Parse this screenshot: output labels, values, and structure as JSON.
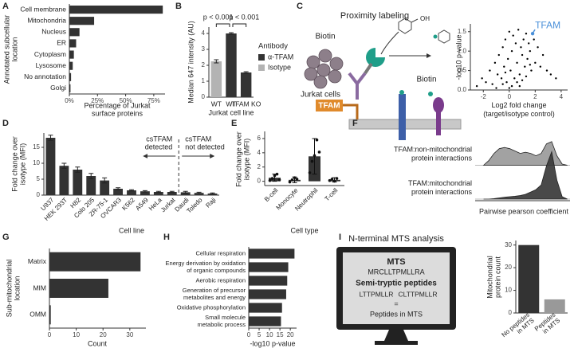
{
  "panel_labels": [
    "A",
    "B",
    "C",
    "D",
    "E",
    "F",
    "G",
    "H",
    "I"
  ],
  "diagram_c": {
    "title": "Proximity labeling",
    "biotin_top": "Biotin",
    "biotin_group": "OH",
    "cells": "Jurkat cells",
    "target": "TFAM",
    "biotin_bottom": "Biotin"
  },
  "diagram_i": {
    "title": "N-terminal MTS analysis",
    "mts_heading": "MTS",
    "mts_sequence": "MRCLLTPMLLRA",
    "peptides_heading": "Semi-tryptic peptides",
    "peptides": [
      "LTTPMLLR",
      "CLTTPMLLR"
    ],
    "equals": "=",
    "result": "Peptides in MTS"
  },
  "chart_data": [
    {
      "type": "bar",
      "horizontal": true,
      "categories": [
        "Cell membrane",
        "Mitochondria",
        "Nucleus",
        "ER",
        "Cytoplasm",
        "Lysosome",
        "No annotation",
        "Golgi"
      ],
      "values": [
        83,
        22,
        9,
        6,
        4,
        3,
        1.5,
        1
      ],
      "color": "#333333",
      "xlim": [
        0,
        85
      ],
      "xticks": [
        {
          "value": 0,
          "label": "0%"
        },
        {
          "value": 25,
          "label": "25%"
        },
        {
          "value": 50,
          "label": "50%"
        },
        {
          "value": 75,
          "label": "75%"
        }
      ],
      "xlabel": [
        "Percentage of Jurkat",
        "surface proteins"
      ],
      "ylabel": [
        "Annotated subcellular",
        "location"
      ]
    },
    {
      "type": "bar",
      "categories": [
        "WT",
        "WT",
        "TFAM KO"
      ],
      "series": [
        {
          "name": "α-TFAM",
          "color": "#333333",
          "values": [
            null,
            4.0,
            1.55
          ],
          "errors": [
            null,
            0.05,
            0.05
          ]
        },
        {
          "name": "Isotype",
          "color": "#b3b3b3",
          "values": [
            2.25,
            null,
            null
          ],
          "errors": [
            0.1,
            null,
            null
          ]
        }
      ],
      "ylim": [
        0,
        4.4
      ],
      "yticks": [
        0,
        1,
        2,
        3,
        4
      ],
      "ylabel": "Median 647 intensity (AU)",
      "xlabel": "Jurkat cell line",
      "legend_title": "Antibody",
      "annotations": [
        "p < 0.001",
        "p < 0.001"
      ]
    },
    {
      "type": "scatter",
      "x": [
        -2.5,
        -2.1,
        -1.8,
        -1.5,
        -1.3,
        -1.1,
        -0.9,
        -0.8,
        -0.6,
        -0.5,
        -0.4,
        -0.3,
        -0.2,
        -0.1,
        0,
        0.1,
        0.2,
        0.3,
        0.4,
        0.5,
        0.6,
        0.7,
        0.8,
        0.9,
        1.0,
        1.1,
        1.2,
        1.3,
        1.4,
        1.5,
        1.6,
        1.7,
        1.9,
        2.0,
        2.2,
        2.4,
        2.6,
        2.9,
        3.2,
        3.6,
        -1.0,
        -0.5,
        0.2,
        0.6,
        1.0,
        1.3,
        0.0,
        -0.3,
        0.8,
        1.6
      ],
      "y": [
        0.1,
        0.3,
        0.2,
        0.5,
        0.15,
        0.7,
        0.4,
        0.9,
        0.3,
        1.1,
        0.6,
        1.3,
        0.2,
        0.8,
        1.5,
        0.5,
        1.0,
        1.4,
        0.3,
        1.2,
        0.7,
        1.55,
        0.4,
        1.1,
        0.9,
        1.3,
        0.6,
        1.45,
        0.8,
        1.2,
        1.0,
        0.5,
        1.3,
        0.7,
        1.1,
        0.6,
        0.9,
        0.5,
        0.4,
        0.3,
        0.05,
        0.15,
        0.1,
        0.2,
        0.25,
        0.35,
        0.05,
        0.45,
        0.1,
        0.65
      ],
      "color": "#000000",
      "xlim": [
        -3,
        4.5
      ],
      "xticks": [
        -2,
        0,
        2,
        4
      ],
      "ylim": [
        0,
        1.7
      ],
      "yticks": [
        {
          "value": 0,
          "label": "0.0"
        },
        {
          "value": 0.5,
          "label": "0.5"
        },
        {
          "value": 1,
          "label": "1.0"
        },
        {
          "value": 1.5,
          "label": "1.5"
        }
      ],
      "xlabel": [
        "Log2 fold change",
        "(target/isotype control)"
      ],
      "ylabel": "-log10 p-value",
      "highlight": {
        "label": "TFAM",
        "x": 1.8,
        "y": 1.45,
        "color": "#4a90d9"
      }
    },
    {
      "type": "bar",
      "categories": [
        "U937",
        "HEK 293T",
        "H82",
        "Colo 205",
        "ZR-75-1",
        "OVCAR3",
        "K562",
        "A549",
        "HeLa",
        "Jurkat",
        "Daudi",
        "Toledo",
        "Raji"
      ],
      "values": [
        18,
        9.2,
        8,
        6,
        4.6,
        2,
        1.5,
        1.2,
        1,
        1,
        0.9,
        0.7,
        0.5
      ],
      "errors": [
        0.8,
        0.8,
        0.8,
        0.8,
        0.8,
        0.3,
        0.2,
        0.2,
        0.2,
        0.2,
        0.3,
        0.2,
        0.2
      ],
      "color": "#333333",
      "ylim": [
        0,
        19.5
      ],
      "yticks": [
        0,
        5,
        10,
        15
      ],
      "ylabel": [
        "Fold change over",
        "isotype (MFI)"
      ],
      "xlabel": "Cell line",
      "annotations": [
        [
          "csTFAM",
          "detected"
        ],
        [
          "csTFAM",
          "not detected"
        ]
      ]
    },
    {
      "type": "bar",
      "categories": [
        "B-cell",
        "Monocyte",
        "Neutrophil",
        "T-cell"
      ],
      "values": [
        0.5,
        0.2,
        3.5,
        0.2
      ],
      "errors": [
        0.5,
        0.4,
        2.5,
        0.3
      ],
      "points": [
        [
          0.1,
          0.4,
          0.8,
          1.0,
          0.2
        ],
        [
          -0.1,
          0.2,
          0.5,
          0.3
        ],
        [
          1.2,
          2.8,
          3.6,
          5.8,
          4.1
        ],
        [
          0.1,
          0.3,
          0.0,
          0.4
        ]
      ],
      "color": "#333333",
      "ylim": [
        -0.6,
        7
      ],
      "yticks": [
        0,
        2,
        4,
        6
      ],
      "ylabel": [
        "Fold change over",
        "isotype (MFI)"
      ],
      "xlabel": "Cell type"
    },
    {
      "type": "density",
      "x": [
        -0.6,
        -0.5,
        -0.4,
        -0.3,
        -0.2,
        -0.1,
        0,
        0.1,
        0.2,
        0.3,
        0.4,
        0.5,
        0.6,
        0.7,
        0.8,
        0.9,
        1.0
      ],
      "series": [
        {
          "name": [
            "TFAM:non-mitochondrial",
            "protein interactions"
          ],
          "color": "#9a9a9a",
          "values": [
            0,
            0.2,
            0.5,
            0.7,
            0.75,
            0.7,
            0.6,
            0.5,
            0.55,
            0.5,
            0.4,
            0.5,
            0.9,
            1.0,
            0.4,
            0.05,
            0
          ]
        },
        {
          "name": [
            "TFAM:mitochondrial",
            "protein interactions"
          ],
          "color": "#3a3a3a",
          "values": [
            0,
            0,
            0.02,
            0.05,
            0.08,
            0.1,
            0.12,
            0.15,
            0.2,
            0.3,
            0.4,
            0.6,
            1.4,
            2.0,
            0.8,
            0.1,
            0
          ]
        }
      ],
      "xlim": [
        -0.7,
        1.05
      ],
      "ylim": [
        0,
        2
      ],
      "xlabel": "Pairwise pearson coefficient"
    },
    {
      "type": "bar",
      "horizontal": true,
      "categories": [
        "Matrix",
        "MIM",
        "OMM"
      ],
      "values": [
        34,
        22,
        0.5
      ],
      "color": "#333333",
      "xlim": [
        0,
        36
      ],
      "xticks": [
        0,
        10,
        20,
        30
      ],
      "xlabel": "Count",
      "ylabel": [
        "Sub-mitochondrial",
        "location"
      ]
    },
    {
      "type": "bar",
      "horizontal": true,
      "categories": [
        "Cellular respiration",
        [
          "Energy derivation by oxidation",
          "of organic compounds"
        ],
        "Aerobic respiration",
        [
          "Generation of precursor",
          "metabolites and energy"
        ],
        "Oxidative phosphorylation",
        [
          "Small molecule",
          "metabolic process"
        ]
      ],
      "values": [
        22,
        19,
        18.5,
        18,
        16,
        15.5
      ],
      "color": "#333333",
      "xlim": [
        0,
        23
      ],
      "xticks": [
        0,
        5,
        10,
        15,
        20
      ],
      "xlabel": "-log10 p-value"
    },
    {
      "type": "bar",
      "categories": [
        [
          "No peptides",
          "in MTS"
        ],
        [
          "Peptides",
          "in MTS"
        ]
      ],
      "values": [
        30,
        6
      ],
      "colors": [
        "#333333",
        "#999999"
      ],
      "ylim": [
        0,
        32
      ],
      "yticks": [
        0,
        10,
        20,
        30
      ],
      "ylabel": [
        "Mitochondrial",
        "protein count"
      ]
    }
  ]
}
